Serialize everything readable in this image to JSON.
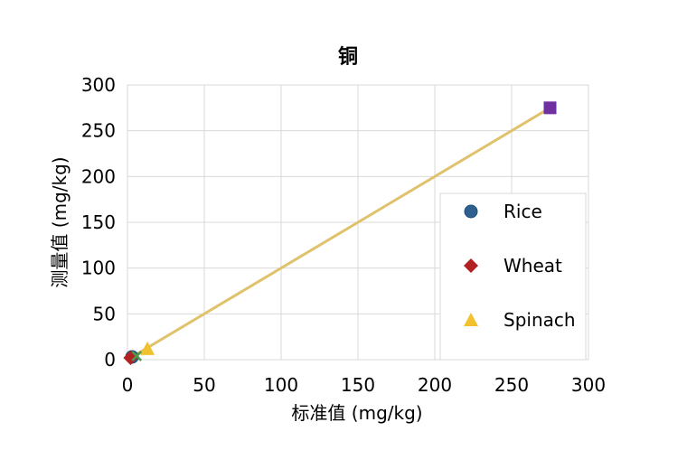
{
  "chart_data": {
    "type": "scatter",
    "title": "铜",
    "xlabel": "标准值 (mg/kg)",
    "ylabel": "测量值 (mg/kg)",
    "xlim": [
      0,
      300
    ],
    "ylim": [
      0,
      300
    ],
    "x_ticks": [
      "0",
      "50",
      "100",
      "150",
      "200",
      "250",
      "300"
    ],
    "y_ticks": [
      "0",
      "50",
      "100",
      "150",
      "200",
      "250",
      "300"
    ],
    "grid": true,
    "legend_position": "right",
    "series": [
      {
        "name": "Rice",
        "marker": "circle",
        "color": "#2e5f8f",
        "points": [
          [
            3,
            3
          ]
        ]
      },
      {
        "name": "Wheat",
        "marker": "diamond",
        "color": "#b22222",
        "points": [
          [
            2,
            2
          ]
        ]
      },
      {
        "name": "Spinach",
        "marker": "triangle",
        "color": "#f2c12e",
        "points": [
          [
            13,
            12
          ]
        ]
      },
      {
        "marker": "x",
        "color": "#4d9a4d",
        "points": [
          [
            6,
            4
          ]
        ]
      },
      {
        "marker": "square",
        "color": "#7030a0",
        "points": [
          [
            275,
            275
          ]
        ]
      }
    ],
    "fit_line": {
      "color": "#dfc26b",
      "x": [
        0,
        275
      ],
      "y": [
        0,
        275
      ]
    }
  }
}
